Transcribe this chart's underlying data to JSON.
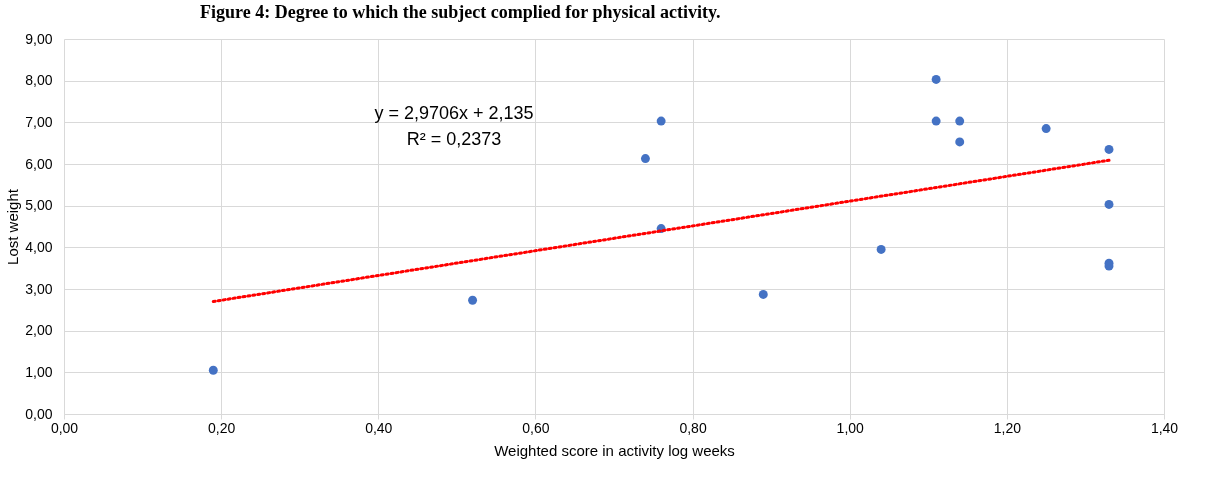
{
  "chart_data": {
    "type": "scatter",
    "title": "Figure 4: Degree to which the subject complied for physical activity.",
    "xlabel": "Weighted score in activity log weeks",
    "ylabel": "Lost weight",
    "annotations": [
      "y = 2,9706x + 2,135",
      "R² = 0,2373"
    ],
    "xlim": [
      0,
      1.4
    ],
    "ylim": [
      0,
      9
    ],
    "xticks": [
      {
        "value": 0,
        "label": "0,00"
      },
      {
        "value": 0.2,
        "label": "0,20"
      },
      {
        "value": 0.4,
        "label": "0,40"
      },
      {
        "value": 0.6,
        "label": "0,60"
      },
      {
        "value": 0.8,
        "label": "0,80"
      },
      {
        "value": 1,
        "label": "1,00"
      },
      {
        "value": 1.2,
        "label": "1,20"
      },
      {
        "value": 1.4,
        "label": "1,40"
      }
    ],
    "yticks": [
      {
        "value": 0,
        "label": "0,00"
      },
      {
        "value": 1,
        "label": "1,00"
      },
      {
        "value": 2,
        "label": "2,00"
      },
      {
        "value": 3,
        "label": "3,00"
      },
      {
        "value": 4,
        "label": "4,00"
      },
      {
        "value": 5,
        "label": "5,00"
      },
      {
        "value": 6,
        "label": "6,00"
      },
      {
        "value": 7,
        "label": "7,00"
      },
      {
        "value": 8,
        "label": "8,00"
      },
      {
        "value": 9,
        "label": "9,00"
      }
    ],
    "grid": true,
    "series": [
      {
        "color": "#4472c4",
        "marker": "circle",
        "x": [
          0.19,
          0.52,
          0.74,
          0.76,
          0.76,
          0.89,
          1.04,
          1.11,
          1.11,
          1.14,
          1.14,
          1.25,
          1.33,
          1.33,
          1.33,
          1.33
        ],
        "values": [
          1.05,
          2.73,
          6.13,
          7.03,
          4.45,
          2.87,
          3.95,
          8.03,
          7.03,
          7.03,
          6.53,
          6.85,
          6.35,
          5.03,
          3.62,
          3.55
        ]
      },
      {
        "type": "line",
        "color": "#ff0000",
        "line_style": "dotted",
        "marker": "none",
        "x": [
          0.19,
          1.33
        ],
        "values": [
          2.7,
          6.09
        ]
      }
    ]
  }
}
